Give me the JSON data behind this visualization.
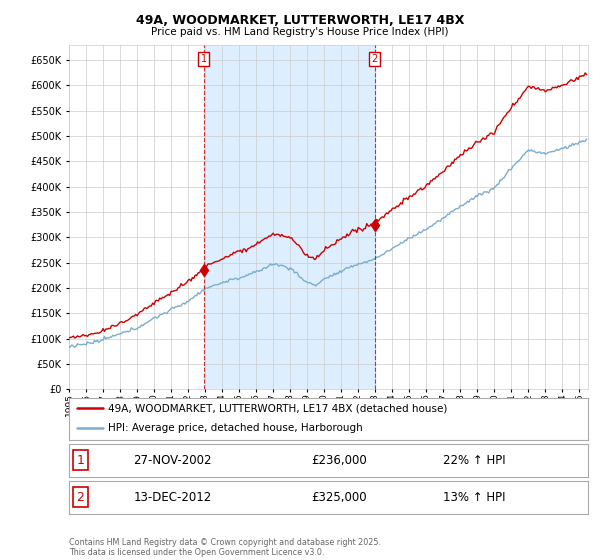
{
  "title": "49A, WOODMARKET, LUTTERWORTH, LE17 4BX",
  "subtitle": "Price paid vs. HM Land Registry's House Price Index (HPI)",
  "legend_line1": "49A, WOODMARKET, LUTTERWORTH, LE17 4BX (detached house)",
  "legend_line2": "HPI: Average price, detached house, Harborough",
  "annotation1_label": "1",
  "annotation1_date": "27-NOV-2002",
  "annotation1_price": "£236,000",
  "annotation1_hpi": "22% ↑ HPI",
  "annotation2_label": "2",
  "annotation2_date": "13-DEC-2012",
  "annotation2_price": "£325,000",
  "annotation2_hpi": "13% ↑ HPI",
  "footer": "Contains HM Land Registry data © Crown copyright and database right 2025.\nThis data is licensed under the Open Government Licence v3.0.",
  "line_color_property": "#cc0000",
  "line_color_hpi": "#7aadcf",
  "shade_color": "#ddeeff",
  "vline_color": "#cc0000",
  "background_color": "#ffffff",
  "grid_color": "#cccccc",
  "ylim": [
    0,
    680000
  ],
  "yticks": [
    0,
    50000,
    100000,
    150000,
    200000,
    250000,
    300000,
    350000,
    400000,
    450000,
    500000,
    550000,
    600000,
    650000
  ],
  "sale1_year": 2002.92,
  "sale2_year": 2012.96,
  "sale1_value": 236000,
  "sale2_value": 325000,
  "xmin": 1995,
  "xmax": 2025.5
}
